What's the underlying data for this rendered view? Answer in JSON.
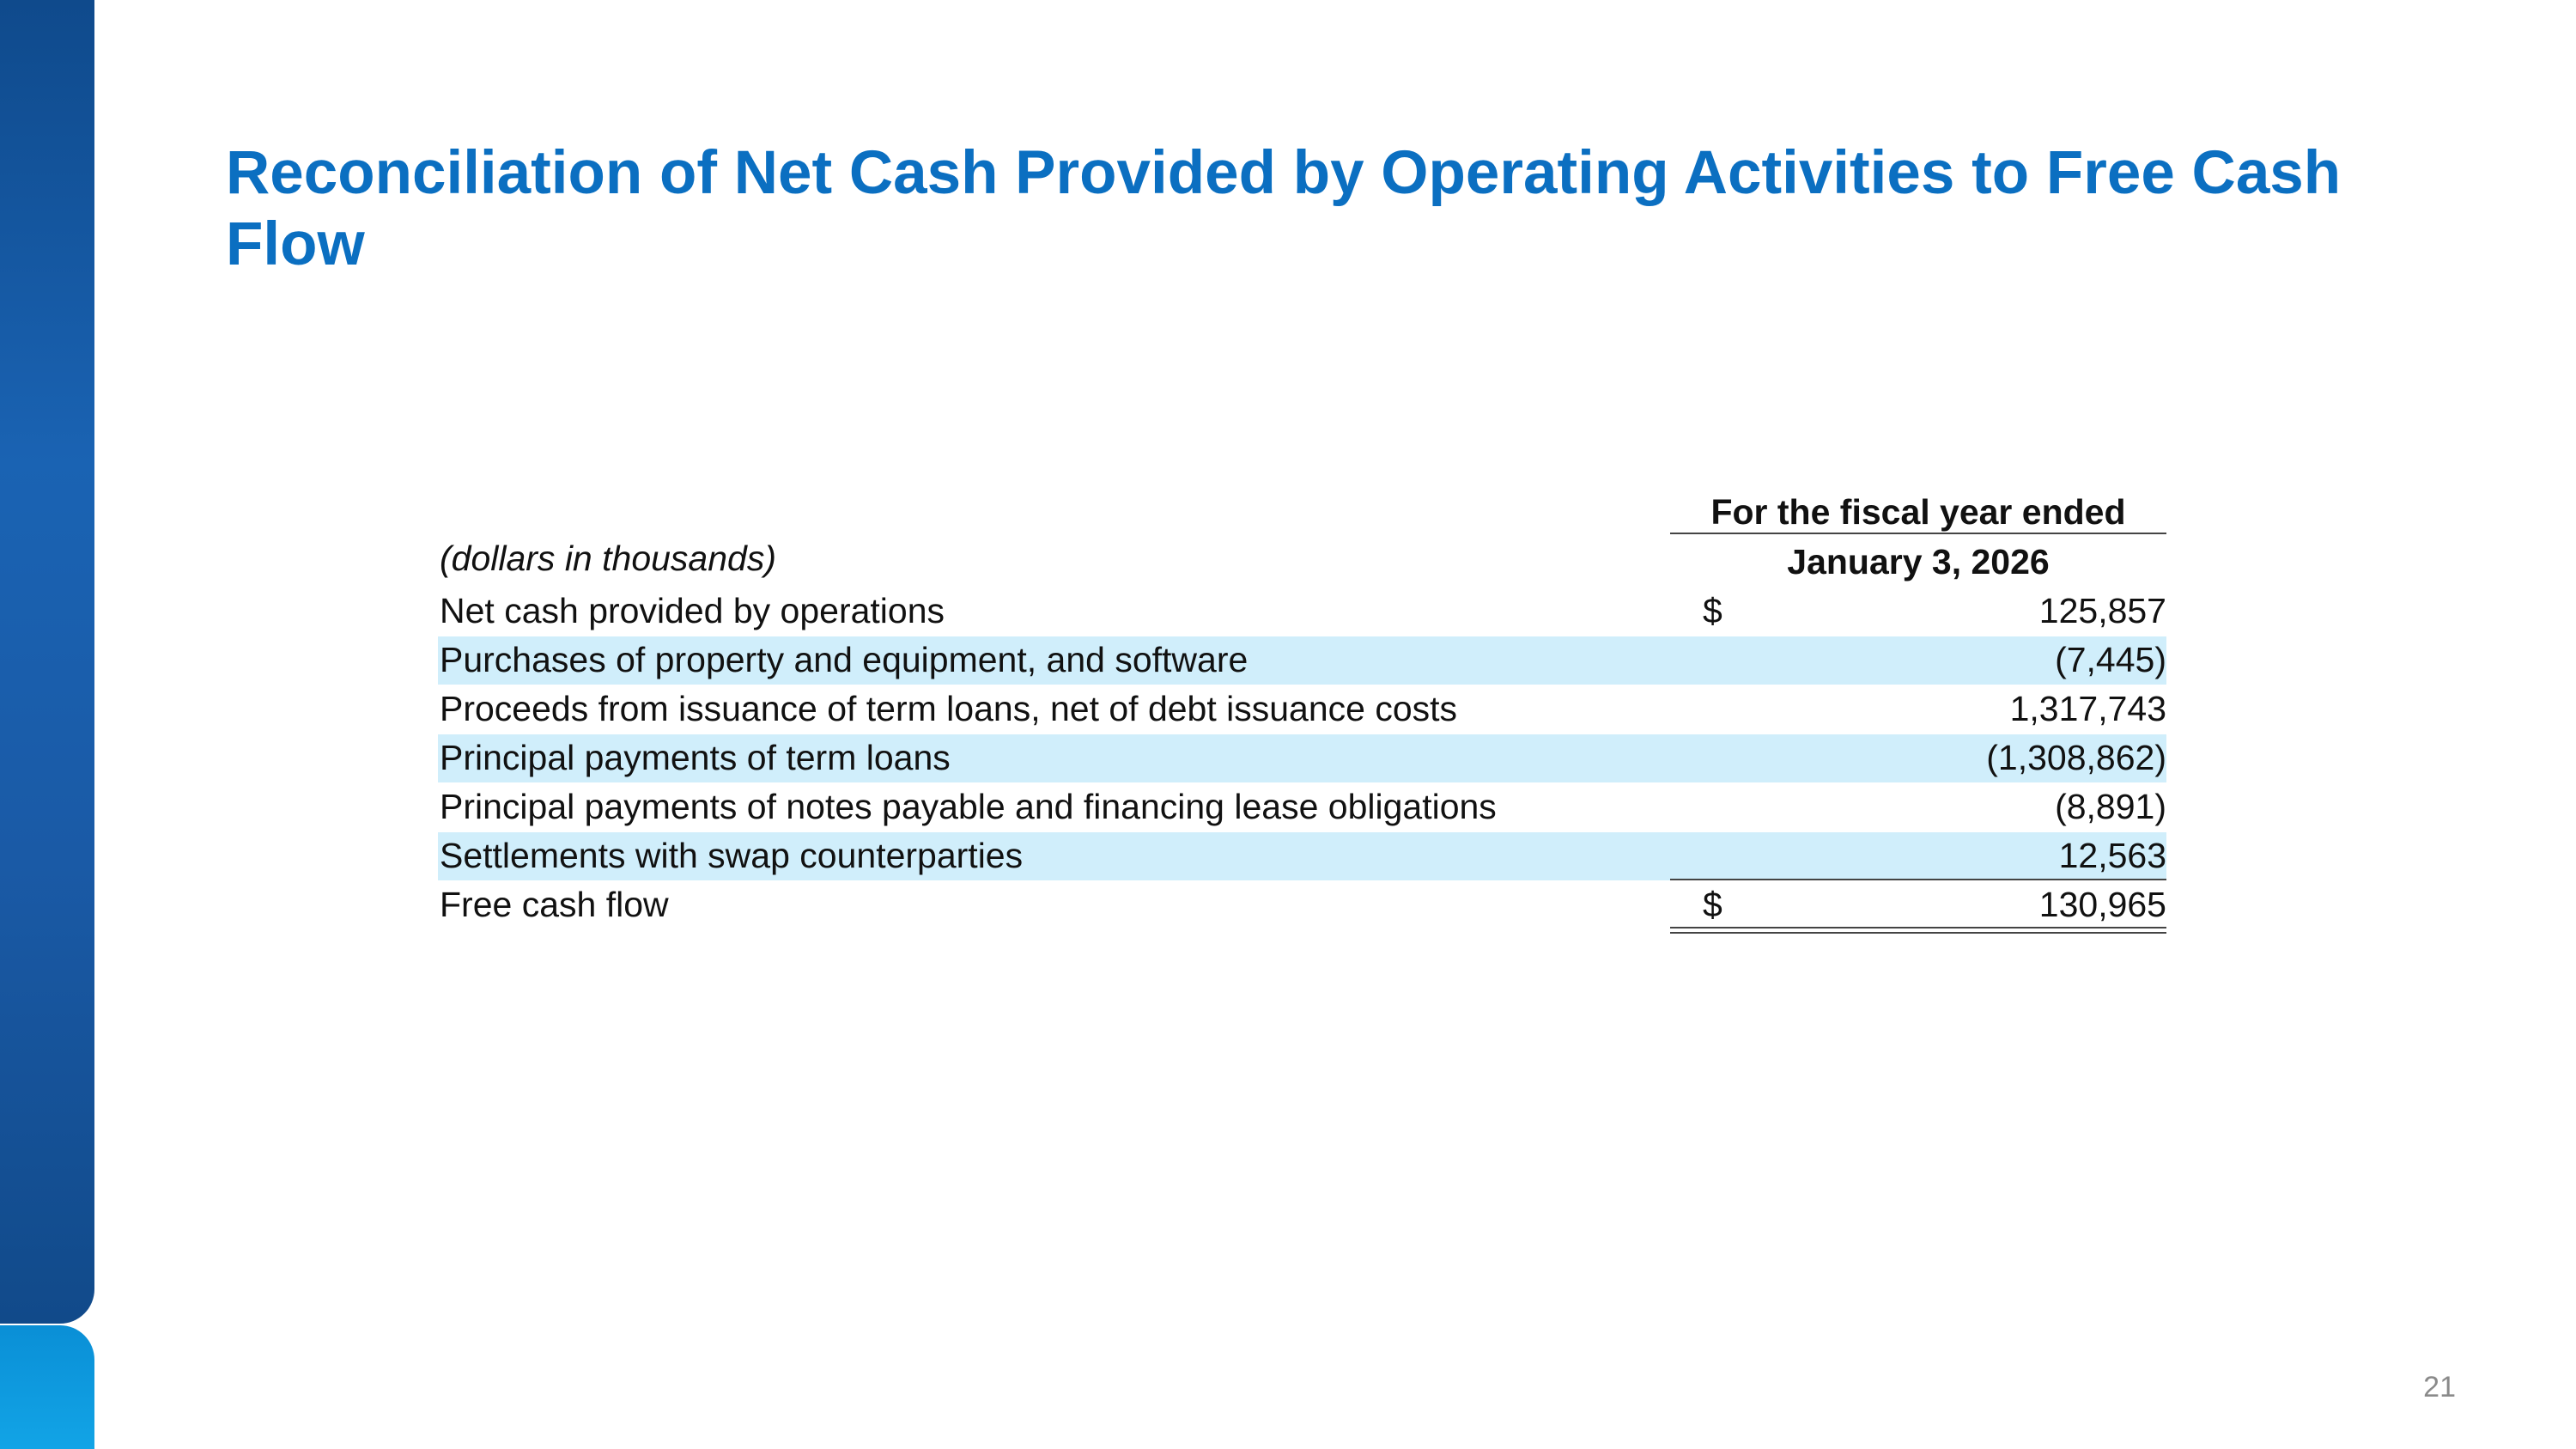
{
  "header": {
    "title": "Reconciliation of Net Cash Provided by Operating Activities to Free Cash Flow"
  },
  "table": {
    "units_note": "(dollars in thousands)",
    "column_header": [
      "For the fiscal year ended",
      "January 3, 2026"
    ],
    "rows": [
      {
        "label": "Net cash provided by operations",
        "currency": "$",
        "value": "125,857"
      },
      {
        "label": "Purchases of property and equipment, and software",
        "value": "(7,445)"
      },
      {
        "label": "Proceeds from issuance of term loans, net of debt issuance costs",
        "value": "1,317,743"
      },
      {
        "label": "Principal payments of term loans",
        "value": "(1,308,862)"
      },
      {
        "label": "Principal payments of notes payable and financing lease obligations",
        "value": "(8,891)"
      },
      {
        "label": "Settlements with swap counterparties",
        "value": "12,563"
      },
      {
        "label": "Free cash flow",
        "currency": "$",
        "value": "130,965"
      }
    ]
  },
  "page_number": "21"
}
